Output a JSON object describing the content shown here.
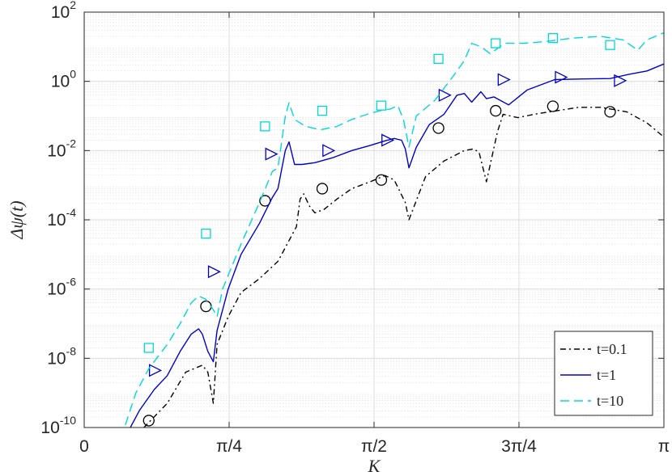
{
  "chart_data": {
    "type": "line",
    "title": "",
    "xlabel": "K",
    "ylabel": "Δψ(t)",
    "xlim": [
      0,
      3.14159265
    ],
    "ylim_log10": [
      -10,
      2
    ],
    "yscale": "log",
    "grid": true,
    "minor_grid": true,
    "legend_position": "bottom-right",
    "x_ticks": [
      {
        "value": 0,
        "label": "0"
      },
      {
        "value": 0.785398,
        "label": "π/4"
      },
      {
        "value": 1.570796,
        "label": "π/2"
      },
      {
        "value": 2.356194,
        "label": "3π/4"
      },
      {
        "value": 3.141593,
        "label": "π"
      }
    ],
    "y_ticks": [
      {
        "exp": 2,
        "base": "10",
        "sup": "2"
      },
      {
        "exp": 0,
        "base": "10",
        "sup": "0"
      },
      {
        "exp": -2,
        "base": "10",
        "sup": "-2"
      },
      {
        "exp": -4,
        "base": "10",
        "sup": "-4"
      },
      {
        "exp": -6,
        "base": "10",
        "sup": "-6"
      },
      {
        "exp": -8,
        "base": "10",
        "sup": "-8"
      },
      {
        "exp": -10,
        "base": "10",
        "sup": "-10"
      }
    ],
    "series": [
      {
        "name": "t=0.1",
        "color": "#000000",
        "dash": "dashdot",
        "marker": "circle",
        "x": [
          0.27,
          0.36,
          0.45,
          0.55,
          0.64,
          0.67,
          0.7,
          0.72,
          0.78,
          0.85,
          0.95,
          1.05,
          1.15,
          1.17,
          1.19,
          1.22,
          1.25,
          1.3,
          1.37,
          1.45,
          1.55,
          1.63,
          1.68,
          1.74,
          1.76,
          1.85,
          1.95,
          2.06,
          2.11,
          2.14,
          2.18,
          2.24,
          2.27,
          2.35,
          2.45,
          2.56,
          2.68,
          2.8,
          2.94,
          3.05,
          3.14
        ],
        "log10y": [
          -10.3,
          -9.8,
          -9.3,
          -8.4,
          -8.2,
          -8.4,
          -9.3,
          -7.6,
          -6.8,
          -6.1,
          -5.7,
          -5.2,
          -4.2,
          -3.4,
          -3.25,
          -3.6,
          -3.8,
          -3.7,
          -3.4,
          -3.1,
          -2.9,
          -2.72,
          -2.85,
          -3.5,
          -4.0,
          -2.75,
          -2.3,
          -2.0,
          -1.95,
          -2.05,
          -2.9,
          -1.45,
          -0.95,
          -1.05,
          -0.94,
          -0.85,
          -0.75,
          -0.75,
          -0.88,
          -1.2,
          -1.6
        ],
        "markers_x": [
          0.35,
          0.66,
          0.98,
          1.29,
          1.61,
          1.92,
          2.23,
          2.54,
          2.85
        ],
        "markers_log10y": [
          -9.8,
          -6.5,
          -3.45,
          -3.1,
          -2.85,
          -1.35,
          -0.85,
          -0.72,
          -0.88
        ]
      },
      {
        "name": "t=1",
        "color": "#0000cd",
        "dash": "solid",
        "marker": "triangle-right",
        "x": [
          0.22,
          0.3,
          0.38,
          0.45,
          0.52,
          0.58,
          0.62,
          0.64,
          0.67,
          0.7,
          0.72,
          0.78,
          0.85,
          0.95,
          1.02,
          1.05,
          1.09,
          1.11,
          1.14,
          1.18,
          1.25,
          1.35,
          1.45,
          1.55,
          1.63,
          1.68,
          1.72,
          1.74,
          1.76,
          1.8,
          1.87,
          1.95,
          2.02,
          2.06,
          2.1,
          2.15,
          2.18,
          2.22,
          2.3,
          2.4,
          2.55,
          2.7,
          2.85,
          2.95,
          3.05,
          3.14
        ],
        "log10y": [
          -10.3,
          -9.5,
          -8.9,
          -8.5,
          -7.8,
          -7.3,
          -7.15,
          -7.3,
          -7.8,
          -8.1,
          -7.2,
          -6.0,
          -5.0,
          -4.1,
          -3.35,
          -3.1,
          -2.0,
          -1.75,
          -2.4,
          -2.4,
          -2.35,
          -2.2,
          -2.0,
          -1.85,
          -1.72,
          -1.65,
          -1.7,
          -1.95,
          -2.5,
          -1.9,
          -1.25,
          -0.95,
          -0.4,
          -0.35,
          -0.6,
          -0.3,
          -0.5,
          -0.45,
          -0.68,
          -0.25,
          0.05,
          0.07,
          0.08,
          0.2,
          0.3,
          0.5
        ],
        "markers_x": [
          0.38,
          0.7,
          1.01,
          1.32,
          1.64,
          1.95,
          2.27,
          2.58,
          2.9
        ],
        "markers_log10y": [
          -8.35,
          -5.5,
          -2.1,
          -2.0,
          -1.7,
          -0.4,
          0.05,
          0.12,
          0.02
        ]
      },
      {
        "name": "t=10",
        "color": "#00d8d8",
        "dash": "dashed",
        "marker": "square",
        "x": [
          0.2,
          0.28,
          0.35,
          0.45,
          0.52,
          0.58,
          0.62,
          0.66,
          0.7,
          0.72,
          0.75,
          0.85,
          0.95,
          1.02,
          1.05,
          1.09,
          1.11,
          1.14,
          1.2,
          1.28,
          1.37,
          1.45,
          1.55,
          1.62,
          1.66,
          1.7,
          1.73,
          1.76,
          1.8,
          1.9,
          2.0,
          2.06,
          2.1,
          2.15,
          2.2,
          2.28,
          2.38,
          2.5,
          2.65,
          2.8,
          2.92,
          3.0,
          3.05,
          3.14
        ],
        "log10y": [
          -10.3,
          -9.0,
          -8.3,
          -7.6,
          -7.0,
          -6.4,
          -6.2,
          -6.3,
          -6.6,
          -6.8,
          -6.0,
          -4.7,
          -3.5,
          -2.6,
          -2.5,
          -1.0,
          -0.62,
          -1.1,
          -1.3,
          -1.4,
          -1.3,
          -1.1,
          -0.92,
          -0.83,
          -0.8,
          -0.7,
          -1.1,
          -1.9,
          -1.0,
          -0.55,
          0.15,
          0.6,
          1.1,
          1.0,
          0.8,
          1.1,
          1.1,
          1.15,
          1.25,
          1.3,
          1.2,
          0.9,
          1.2,
          1.4
        ],
        "markers_x": [
          0.35,
          0.66,
          0.98,
          1.29,
          1.61,
          1.92,
          2.23,
          2.54,
          2.85
        ],
        "markers_log10y": [
          -7.7,
          -4.4,
          -1.3,
          -0.85,
          -0.7,
          0.65,
          1.1,
          1.25,
          1.05
        ]
      }
    ]
  }
}
